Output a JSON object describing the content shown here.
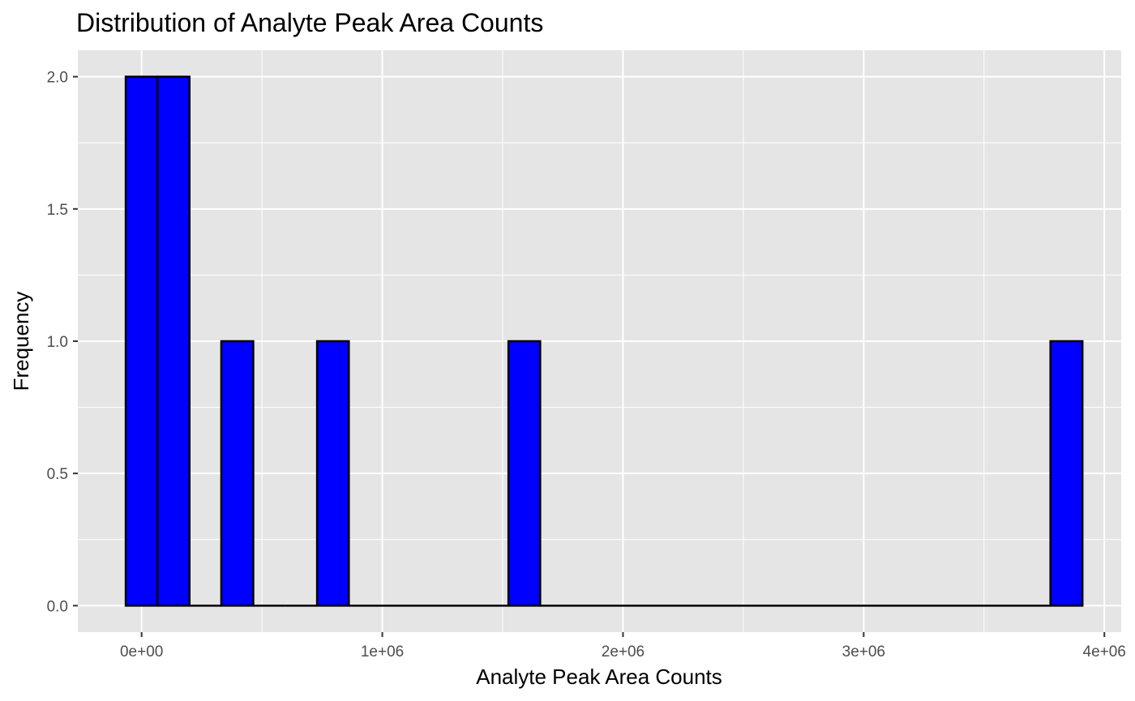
{
  "chart_data": {
    "type": "bar",
    "title": "Distribution of Analyte Peak Area Counts",
    "xlabel": "Analyte Peak Area Counts",
    "ylabel": "Frequency",
    "xlim": [
      -265000,
      4070000
    ],
    "ylim": [
      -0.1,
      2.1
    ],
    "x_ticks": [
      0,
      1000000,
      2000000,
      3000000,
      4000000
    ],
    "x_tick_labels": [
      "0e+00",
      "1e+06",
      "2e+06",
      "3e+06",
      "4e+06"
    ],
    "y_ticks": [
      0,
      0.5,
      1,
      1.5,
      2
    ],
    "y_tick_labels": [
      "0.0",
      "0.5",
      "1.0",
      "1.5",
      "2.0"
    ],
    "bin_width": 132500,
    "bins": [
      {
        "x0": -66000,
        "x1": 66000,
        "count": 2
      },
      {
        "x0": 66000,
        "x1": 199000,
        "count": 2
      },
      {
        "x0": 199000,
        "x1": 331000,
        "count": 0
      },
      {
        "x0": 331000,
        "x1": 464000,
        "count": 1
      },
      {
        "x0": 464000,
        "x1": 596000,
        "count": 0
      },
      {
        "x0": 596000,
        "x1": 729000,
        "count": 0
      },
      {
        "x0": 729000,
        "x1": 861000,
        "count": 1
      },
      {
        "x0": 861000,
        "x1": 1524000,
        "count": 0
      },
      {
        "x0": 1524000,
        "x1": 1656000,
        "count": 1
      },
      {
        "x0": 1656000,
        "x1": 3776000,
        "count": 0
      },
      {
        "x0": 3776000,
        "x1": 3909000,
        "count": 1
      }
    ],
    "bar_fill": "#0000ff",
    "bar_outline": "#000000",
    "panel_background": "#e5e5e5",
    "grid_color": "#ffffff",
    "grid": true,
    "legend": "none"
  }
}
